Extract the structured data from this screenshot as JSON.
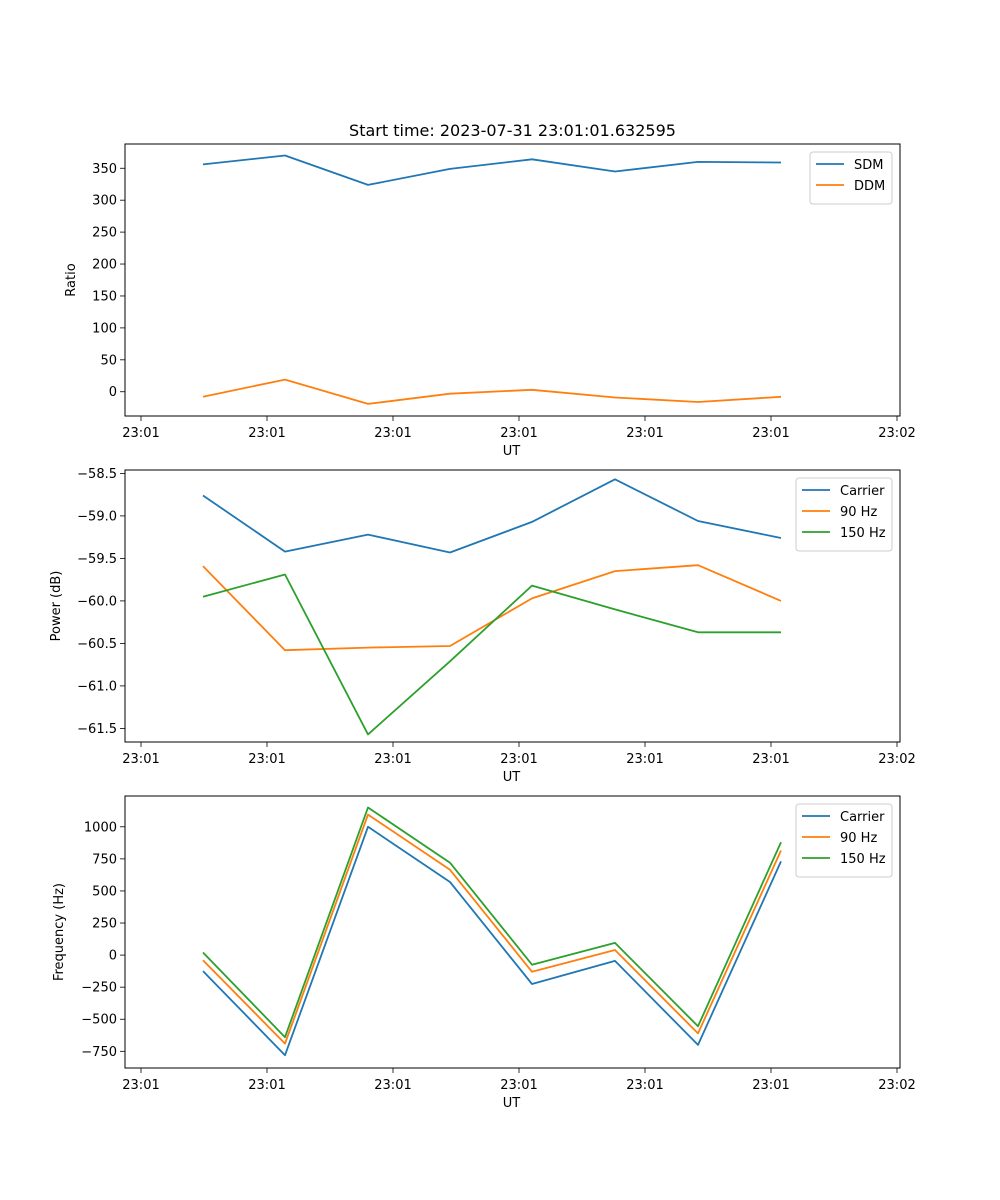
{
  "chart_data": [
    {
      "type": "line",
      "title": "Start time: 2023-07-31 23:01:01.632595",
      "xlabel": "UT",
      "ylabel": "Ratio",
      "x_tick_labels": [
        "23:01",
        "23:01",
        "23:01",
        "23:01",
        "23:01",
        "23:01",
        "23:02"
      ],
      "y_ticks": [
        0,
        50,
        100,
        150,
        200,
        250,
        300,
        350
      ],
      "y_tick_labels": [
        "0",
        "50",
        "100",
        "150",
        "200",
        "250",
        "300",
        "350"
      ],
      "ylim": [
        -38,
        388
      ],
      "legend_position": "top-right",
      "series": [
        {
          "name": "SDM",
          "color": "#1f77b4",
          "values": [
            356,
            370,
            324,
            349,
            364,
            345,
            360,
            359
          ]
        },
        {
          "name": "DDM",
          "color": "#ff7f0e",
          "values": [
            -8,
            19,
            -19,
            -3,
            3,
            -9,
            -16,
            -8
          ]
        }
      ]
    },
    {
      "type": "line",
      "title": "",
      "xlabel": "UT",
      "ylabel": "Power (dB)",
      "x_tick_labels": [
        "23:01",
        "23:01",
        "23:01",
        "23:01",
        "23:01",
        "23:01",
        "23:02"
      ],
      "y_ticks": [
        -61.5,
        -61.0,
        -60.5,
        -60.0,
        -59.5,
        -59.0,
        -58.5
      ],
      "y_tick_labels": [
        "−61.5",
        "−61.0",
        "−60.5",
        "−60.0",
        "−59.5",
        "−59.0",
        "−58.5"
      ],
      "ylim": [
        -61.66,
        -58.46
      ],
      "legend_position": "top-right",
      "series": [
        {
          "name": "Carrier",
          "color": "#1f77b4",
          "values": [
            -58.76,
            -59.42,
            -59.22,
            -59.43,
            -59.07,
            -58.57,
            -59.06,
            -59.26
          ]
        },
        {
          "name": "90 Hz",
          "color": "#ff7f0e",
          "values": [
            -59.59,
            -60.58,
            -60.55,
            -60.53,
            -59.97,
            -59.65,
            -59.58,
            -60.0
          ]
        },
        {
          "name": "150 Hz",
          "color": "#2ca02c",
          "values": [
            -59.95,
            -59.69,
            -61.57,
            -60.71,
            -59.82,
            -60.1,
            -60.37,
            -60.37
          ]
        }
      ]
    },
    {
      "type": "line",
      "title": "",
      "xlabel": "UT",
      "ylabel": "Frequency (Hz)",
      "x_tick_labels": [
        "23:01",
        "23:01",
        "23:01",
        "23:01",
        "23:01",
        "23:01",
        "23:02"
      ],
      "y_ticks": [
        -750,
        -500,
        -250,
        0,
        250,
        500,
        750,
        1000
      ],
      "y_tick_labels": [
        "−750",
        "−500",
        "−250",
        "0",
        "250",
        "500",
        "750",
        "1000"
      ],
      "ylim": [
        -880,
        1240
      ],
      "legend_position": "top-right",
      "series": [
        {
          "name": "Carrier",
          "color": "#1f77b4",
          "values": [
            -125,
            -780,
            1000,
            570,
            -225,
            -45,
            -700,
            730
          ]
        },
        {
          "name": "90 Hz",
          "color": "#ff7f0e",
          "values": [
            -40,
            -690,
            1095,
            665,
            -130,
            40,
            -610,
            815
          ]
        },
        {
          "name": "150 Hz",
          "color": "#2ca02c",
          "values": [
            20,
            -640,
            1150,
            720,
            -75,
            95,
            -555,
            880
          ]
        }
      ]
    }
  ]
}
